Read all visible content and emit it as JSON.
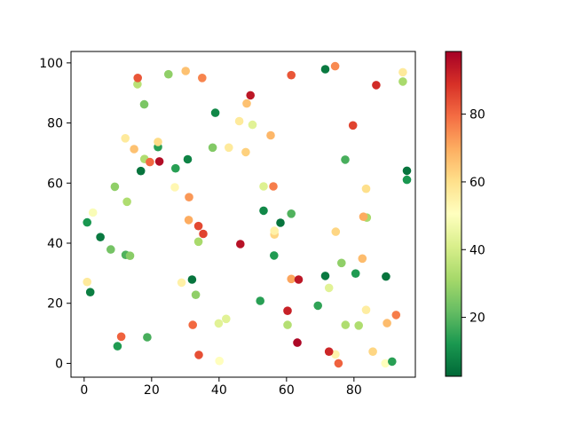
{
  "figure": {
    "background": "#ffffff",
    "spine_color": "#000000",
    "tick_color": "#000000"
  },
  "chart_data": {
    "type": "scatter",
    "title": "",
    "xlabel": "",
    "ylabel": "",
    "grid": false,
    "legend": "none",
    "xlim": [
      -3.9,
      98.2
    ],
    "ylim": [
      -4.6,
      103.8
    ],
    "x_ticks": [
      0,
      20,
      40,
      60,
      80
    ],
    "y_ticks": [
      0,
      20,
      40,
      60,
      80,
      100
    ],
    "marker_diameter_px": 9.6,
    "colorbar": {
      "position": "right",
      "colormap": "RdYlGn_r",
      "vmin": 2.6,
      "vmax": 98.5,
      "ticks": [
        20,
        40,
        60,
        80
      ],
      "gradient_stops_low_to_high": [
        "#006837",
        "#1a9850",
        "#66bd63",
        "#a6d96a",
        "#d9ef8b",
        "#ffffbf",
        "#fee08b",
        "#fdae61",
        "#f46d43",
        "#d73027",
        "#a50026"
      ]
    },
    "points_xyc": [
      [
        15.8,
        92.9,
        35
      ],
      [
        15.9,
        95.0,
        83
      ],
      [
        25.0,
        96.2,
        28
      ],
      [
        30.1,
        97.3,
        66
      ],
      [
        35.0,
        95.0,
        76
      ],
      [
        17.8,
        86.2,
        25
      ],
      [
        38.9,
        83.4,
        9
      ],
      [
        46.0,
        80.6,
        57
      ],
      [
        12.2,
        74.9,
        57
      ],
      [
        21.9,
        72.0,
        14
      ],
      [
        21.9,
        73.7,
        61
      ],
      [
        14.8,
        71.3,
        66
      ],
      [
        38.1,
        71.8,
        26
      ],
      [
        42.9,
        71.8,
        57
      ],
      [
        49.9,
        79.4,
        43
      ],
      [
        61.4,
        95.9,
        83
      ],
      [
        71.5,
        97.9,
        6
      ],
      [
        74.4,
        98.9,
        75
      ],
      [
        86.6,
        92.6,
        90
      ],
      [
        94.5,
        96.9,
        57
      ],
      [
        94.5,
        93.8,
        32
      ],
      [
        48.2,
        86.5,
        66
      ],
      [
        49.3,
        89.2,
        94
      ],
      [
        55.3,
        75.9,
        68
      ],
      [
        47.9,
        70.3,
        63
      ],
      [
        79.7,
        79.2,
        86
      ],
      [
        77.4,
        67.8,
        18
      ],
      [
        17.9,
        68.0,
        33
      ],
      [
        19.5,
        67.0,
        80
      ],
      [
        22.3,
        67.2,
        96
      ],
      [
        16.8,
        64.0,
        5
      ],
      [
        27.1,
        64.9,
        14
      ],
      [
        30.7,
        67.9,
        8
      ],
      [
        9.1,
        58.8,
        28
      ],
      [
        12.7,
        53.8,
        33
      ],
      [
        2.6,
        50.2,
        49
      ],
      [
        0.9,
        46.9,
        12
      ],
      [
        4.8,
        42.0,
        6
      ],
      [
        7.9,
        37.9,
        24
      ],
      [
        12.3,
        36.1,
        19
      ],
      [
        13.6,
        35.8,
        27
      ],
      [
        26.9,
        58.6,
        53
      ],
      [
        31.1,
        55.3,
        73
      ],
      [
        31.0,
        47.7,
        70
      ],
      [
        33.9,
        45.7,
        85
      ],
      [
        35.3,
        43.1,
        86
      ],
      [
        33.9,
        40.5,
        32
      ],
      [
        46.3,
        39.7,
        95
      ],
      [
        95.7,
        64.1,
        5
      ],
      [
        95.7,
        61.1,
        12
      ],
      [
        53.2,
        58.9,
        42
      ],
      [
        56.1,
        58.9,
        77
      ],
      [
        83.6,
        58.1,
        60
      ],
      [
        53.2,
        50.8,
        9
      ],
      [
        61.4,
        49.8,
        19
      ],
      [
        58.2,
        46.8,
        5
      ],
      [
        56.4,
        42.9,
        62
      ],
      [
        56.4,
        44.1,
        55
      ],
      [
        56.3,
        35.9,
        13
      ],
      [
        74.6,
        43.8,
        62
      ],
      [
        83.8,
        48.5,
        32
      ],
      [
        82.8,
        48.8,
        70
      ],
      [
        82.5,
        34.9,
        67
      ],
      [
        76.3,
        33.4,
        28
      ],
      [
        0.9,
        27.1,
        57
      ],
      [
        1.8,
        23.7,
        7
      ],
      [
        28.9,
        26.9,
        55
      ],
      [
        32.0,
        27.9,
        5
      ],
      [
        33.1,
        22.8,
        28
      ],
      [
        32.2,
        12.8,
        80
      ],
      [
        39.9,
        13.3,
        43
      ],
      [
        42.1,
        14.8,
        43
      ],
      [
        11.0,
        8.9,
        81
      ],
      [
        9.9,
        5.7,
        13
      ],
      [
        18.7,
        8.7,
        18
      ],
      [
        34.0,
        2.8,
        84
      ],
      [
        40.1,
        0.8,
        51
      ],
      [
        61.4,
        28.1,
        71
      ],
      [
        63.6,
        27.9,
        94
      ],
      [
        71.5,
        29.1,
        6
      ],
      [
        80.5,
        29.9,
        13
      ],
      [
        89.5,
        28.9,
        5
      ],
      [
        72.6,
        25.1,
        43
      ],
      [
        52.2,
        20.8,
        14
      ],
      [
        60.3,
        17.5,
        92
      ],
      [
        69.3,
        19.2,
        15
      ],
      [
        60.3,
        12.8,
        34
      ],
      [
        83.6,
        17.8,
        56
      ],
      [
        92.5,
        16.1,
        77
      ],
      [
        89.8,
        13.4,
        67
      ],
      [
        77.5,
        12.8,
        33
      ],
      [
        81.4,
        12.6,
        33
      ],
      [
        63.2,
        6.9,
        97
      ],
      [
        74.5,
        3.0,
        54
      ],
      [
        72.6,
        3.9,
        91
      ],
      [
        75.4,
        0.0,
        81
      ],
      [
        85.6,
        3.9,
        62
      ],
      [
        89.3,
        0.0,
        51
      ],
      [
        91.3,
        0.6,
        14
      ]
    ]
  }
}
